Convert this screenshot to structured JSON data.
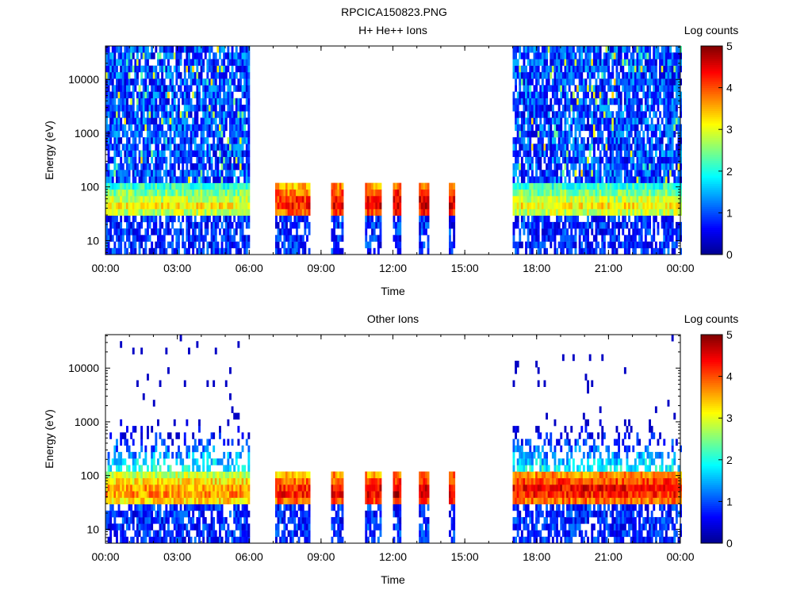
{
  "figure": {
    "title": "RPCICA150823.PNG"
  },
  "colorbar": {
    "label": "Log counts",
    "ticks": [
      "0",
      "1",
      "2",
      "3",
      "4",
      "5"
    ],
    "range": [
      0,
      5
    ]
  },
  "colors": {
    "colormap": [
      "#00008f",
      "#0000ff",
      "#0080ff",
      "#00ffff",
      "#80ff80",
      "#ffff00",
      "#ff8000",
      "#ff0000",
      "#800000"
    ],
    "background": "#ffffff"
  },
  "chart_data": [
    {
      "type": "heatmap",
      "title": "H+ He++ Ions",
      "xlabel": "Time",
      "ylabel": "Energy (eV)",
      "yscale": "log",
      "ylim": [
        5.5,
        42000
      ],
      "xlim": [
        "00:00",
        "24:00"
      ],
      "x_ticks": [
        "00:00",
        "03:00",
        "06:00",
        "09:00",
        "12:00",
        "15:00",
        "18:00",
        "21:00",
        "00:00"
      ],
      "y_ticks": [
        "10",
        "100",
        "1000",
        "10000"
      ],
      "colorbar_label": "Log counts",
      "colorbar_range": [
        0,
        5
      ],
      "data_segments": [
        {
          "start": "00:00",
          "end": "06:00",
          "peak_energy_eV": 45,
          "peak_log_counts": 3.2,
          "background": "high"
        },
        {
          "start": "07:05",
          "end": "08:30",
          "peak_energy_eV": 50,
          "peak_log_counts": 4.4,
          "background": "none"
        },
        {
          "start": "09:25",
          "end": "09:55",
          "peak_energy_eV": 50,
          "peak_log_counts": 4.6,
          "background": "none"
        },
        {
          "start": "10:50",
          "end": "11:30",
          "peak_energy_eV": 50,
          "peak_log_counts": 4.6,
          "background": "none"
        },
        {
          "start": "12:00",
          "end": "12:20",
          "peak_energy_eV": 50,
          "peak_log_counts": 4.8,
          "background": "none"
        },
        {
          "start": "13:05",
          "end": "13:30",
          "peak_energy_eV": 50,
          "peak_log_counts": 4.7,
          "background": "none"
        },
        {
          "start": "14:20",
          "end": "14:35",
          "peak_energy_eV": 50,
          "peak_log_counts": 4.7,
          "background": "none"
        },
        {
          "start": "17:00",
          "end": "24:00",
          "peak_energy_eV": 45,
          "peak_log_counts": 3.2,
          "background": "high"
        }
      ]
    },
    {
      "type": "heatmap",
      "title": "Other Ions",
      "xlabel": "Time",
      "ylabel": "Energy (eV)",
      "yscale": "log",
      "ylim": [
        5.5,
        42000
      ],
      "xlim": [
        "00:00",
        "24:00"
      ],
      "x_ticks": [
        "00:00",
        "03:00",
        "06:00",
        "09:00",
        "12:00",
        "15:00",
        "18:00",
        "21:00",
        "00:00"
      ],
      "y_ticks": [
        "10",
        "100",
        "1000",
        "10000"
      ],
      "colorbar_label": "Log counts",
      "colorbar_range": [
        0,
        5
      ],
      "data_segments": [
        {
          "start": "00:00",
          "end": "06:00",
          "peak_energy_eV": 50,
          "peak_log_counts": 3.8,
          "background": "sparse"
        },
        {
          "start": "07:05",
          "end": "08:30",
          "peak_energy_eV": 50,
          "peak_log_counts": 4.4,
          "background": "none"
        },
        {
          "start": "09:25",
          "end": "09:55",
          "peak_energy_eV": 50,
          "peak_log_counts": 4.6,
          "background": "none"
        },
        {
          "start": "10:50",
          "end": "11:30",
          "peak_energy_eV": 50,
          "peak_log_counts": 4.6,
          "background": "none"
        },
        {
          "start": "12:00",
          "end": "12:20",
          "peak_energy_eV": 50,
          "peak_log_counts": 4.8,
          "background": "none"
        },
        {
          "start": "13:05",
          "end": "13:30",
          "peak_energy_eV": 50,
          "peak_log_counts": 4.7,
          "background": "none"
        },
        {
          "start": "14:20",
          "end": "14:35",
          "peak_energy_eV": 50,
          "peak_log_counts": 4.7,
          "background": "none"
        },
        {
          "start": "17:00",
          "end": "24:00",
          "peak_energy_eV": 55,
          "peak_log_counts": 4.5,
          "background": "sparse"
        }
      ]
    }
  ]
}
